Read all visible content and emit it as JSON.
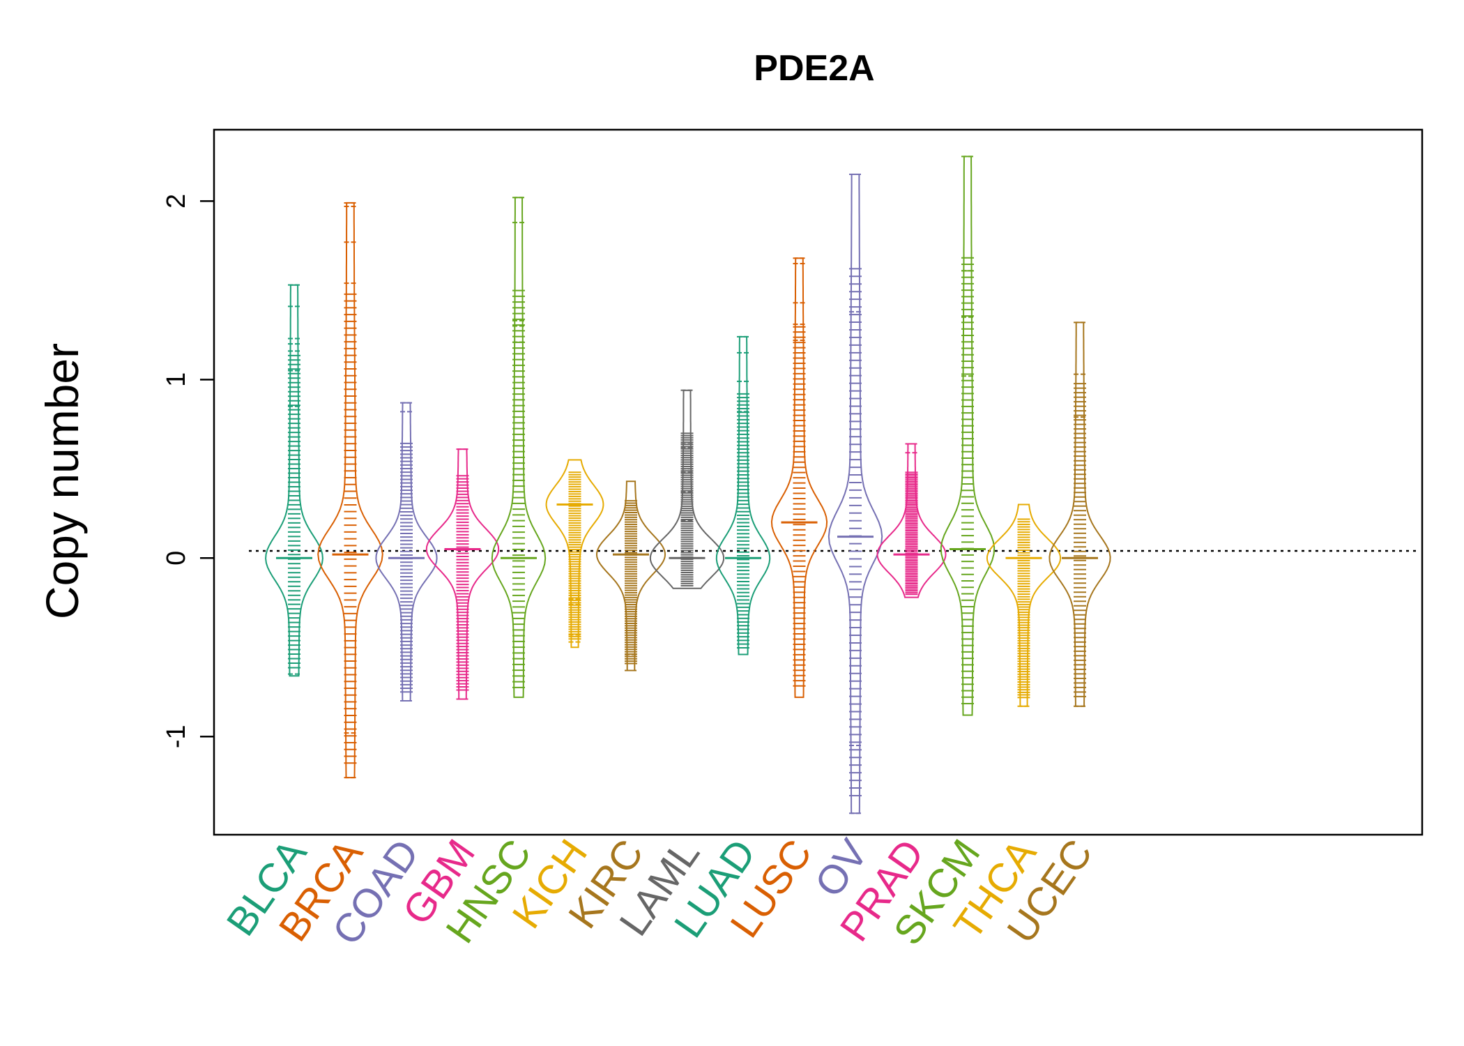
{
  "chart_data": {
    "type": "beanplot",
    "title": "PDE2A",
    "ylabel": "Copy number",
    "xlabel": "",
    "ylim": [
      -1.55,
      2.4
    ],
    "yticks": [
      -1,
      0,
      1,
      2
    ],
    "ytick_labels": [
      "-1",
      "0",
      "1",
      "2"
    ],
    "reference_line": 0.04,
    "categories": [
      "BLCA",
      "BRCA",
      "COAD",
      "GBM",
      "HNSC",
      "KICH",
      "KIRC",
      "LAML",
      "LUAD",
      "LUSC",
      "OV",
      "PRAD",
      "SKCM",
      "THCA",
      "UCEC"
    ],
    "colors": [
      "#1b9e77",
      "#d95f02",
      "#7570b3",
      "#e7298a",
      "#66a61e",
      "#e6ab02",
      "#a6761d",
      "#666666",
      "#1b9e77",
      "#d95f02",
      "#7570b3",
      "#e7298a",
      "#66a61e",
      "#e6ab02",
      "#a6761d"
    ],
    "series": [
      {
        "name": "BLCA",
        "min": -0.66,
        "max": 1.53,
        "median": 0.0,
        "peak": 0.08,
        "outliers": [
          1.53,
          1.41,
          1.23,
          1.2,
          1.16,
          1.05,
          0.85,
          -0.65
        ]
      },
      {
        "name": "BRCA",
        "min": -1.23,
        "max": 1.99,
        "median": 0.02,
        "peak": 0.12,
        "outliers": [
          1.99,
          1.97,
          1.77,
          1.54,
          -0.98,
          -1.23
        ]
      },
      {
        "name": "COAD",
        "min": -0.8,
        "max": 0.87,
        "median": 0.0,
        "peak": 0.1,
        "outliers": [
          0.87,
          0.82,
          -0.8
        ]
      },
      {
        "name": "GBM",
        "min": -0.79,
        "max": 0.61,
        "median": 0.05,
        "peak": 0.16,
        "outliers": [
          0.61,
          -0.79
        ]
      },
      {
        "name": "HNSC",
        "min": -0.78,
        "max": 2.02,
        "median": 0.0,
        "peak": 0.06,
        "outliers": [
          2.02,
          1.88,
          1.33,
          1.3,
          1.21
        ]
      },
      {
        "name": "KICH",
        "min": -0.5,
        "max": 0.55,
        "median": 0.3,
        "peak": 0.08,
        "outliers": [
          -0.23,
          -0.26,
          -0.43,
          -0.47
        ]
      },
      {
        "name": "KIRC",
        "min": -0.63,
        "max": 0.43,
        "median": 0.02,
        "peak": 0.14,
        "outliers": [
          -0.54,
          -0.63
        ]
      },
      {
        "name": "LAML",
        "min": -0.17,
        "max": 0.94,
        "median": 0.0,
        "peak": 0.3,
        "outliers": [
          0.94,
          0.64,
          0.62,
          0.5,
          0.48,
          0.37,
          0.21
        ]
      },
      {
        "name": "LUAD",
        "min": -0.54,
        "max": 1.24,
        "median": 0.0,
        "peak": 0.06,
        "outliers": [
          1.24,
          1.15,
          0.99,
          0.82
        ]
      },
      {
        "name": "LUSC",
        "min": -0.78,
        "max": 1.68,
        "median": 0.2,
        "peak": 0.07,
        "outliers": [
          1.68,
          1.65,
          1.43,
          1.31,
          1.22
        ]
      },
      {
        "name": "OV",
        "min": -1.43,
        "max": 2.15,
        "median": 0.12,
        "peak": 0.06,
        "outliers": [
          2.15,
          1.38,
          -1.05,
          -1.43
        ]
      },
      {
        "name": "PRAD",
        "min": -0.22,
        "max": 0.64,
        "median": 0.02,
        "peak": 0.14,
        "outliers": [
          0.64,
          0.59
        ]
      },
      {
        "name": "SKCM",
        "min": -0.88,
        "max": 2.25,
        "median": 0.05,
        "peak": 0.06,
        "outliers": [
          2.25,
          1.61,
          1.35,
          1.02
        ]
      },
      {
        "name": "THCA",
        "min": -0.83,
        "max": 0.3,
        "median": 0.0,
        "peak": 0.2,
        "outliers": [
          -0.83
        ]
      },
      {
        "name": "UCEC",
        "min": -0.83,
        "max": 1.32,
        "median": 0.0,
        "peak": 0.1,
        "outliers": [
          1.32,
          1.03,
          0.79,
          -0.83
        ]
      }
    ]
  }
}
